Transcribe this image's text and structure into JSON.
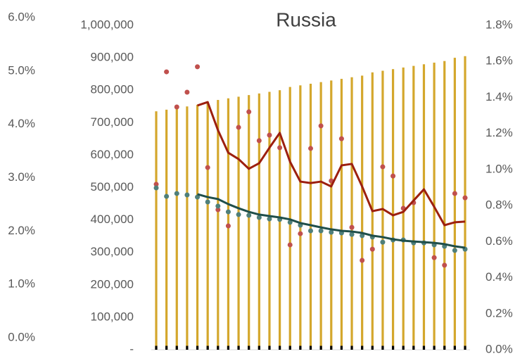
{
  "chart_data": {
    "type": "combo",
    "title": "Russia",
    "categories": [
      null,
      null,
      null,
      null,
      null,
      null,
      null,
      null,
      null,
      null,
      null,
      null,
      null,
      null,
      null,
      null,
      null,
      null,
      null,
      null,
      null,
      null,
      null,
      null,
      null,
      null,
      null,
      null,
      null,
      null,
      null
    ],
    "ylim": [
      0,
      1000000
    ],
    "yticks": [
      {
        "value": 0,
        "label": "-"
      },
      {
        "value": 100000,
        "label": "100,000"
      },
      {
        "value": 200000,
        "label": "200,000"
      },
      {
        "value": 300000,
        "label": "300,000"
      },
      {
        "value": 400000,
        "label": "400,000"
      },
      {
        "value": 500000,
        "label": "500,000"
      },
      {
        "value": 600000,
        "label": "600,000"
      },
      {
        "value": 700000,
        "label": "700,000"
      },
      {
        "value": 800000,
        "label": "800,000"
      },
      {
        "value": 900000,
        "label": "900,000"
      },
      {
        "value": 1000000,
        "label": "1,000,000"
      }
    ],
    "y2lim": [
      0,
      1.8
    ],
    "y2ticks": [
      {
        "value": 0,
        "label": "0.0%"
      },
      {
        "value": 0.2,
        "label": "0.2%"
      },
      {
        "value": 0.4,
        "label": "0.4%"
      },
      {
        "value": 0.6,
        "label": "0.6%"
      },
      {
        "value": 0.8,
        "label": "0.8%"
      },
      {
        "value": 1.0,
        "label": "1.0%"
      },
      {
        "value": 1.2,
        "label": "1.2%"
      },
      {
        "value": 1.4,
        "label": "1.4%"
      },
      {
        "value": 1.6,
        "label": "1.6%"
      },
      {
        "value": 1.8,
        "label": "1.8%"
      }
    ],
    "y3lim": [
      0,
      6
    ],
    "y3ticks": [
      {
        "value": 0,
        "label": "0.0%"
      },
      {
        "value": 1,
        "label": "1.0%"
      },
      {
        "value": 2,
        "label": "2.0%"
      },
      {
        "value": 3,
        "label": "3.0%"
      },
      {
        "value": 4,
        "label": "4.0%"
      },
      {
        "value": 5,
        "label": "5.0%"
      },
      {
        "value": 6,
        "label": "6.0%"
      }
    ],
    "series": [
      {
        "kind": "bar",
        "color": "#d4a72c",
        "values": [
          735000,
          740000,
          745000,
          750000,
          755000,
          765000,
          770000,
          775000,
          780000,
          785000,
          790000,
          795000,
          800000,
          810000,
          815000,
          820000,
          825000,
          830000,
          835000,
          840000,
          845000,
          855000,
          860000,
          865000,
          870000,
          875000,
          880000,
          885000,
          890000,
          900000,
          905000
        ]
      },
      {
        "kind": "bar",
        "color": "#000000",
        "values": [
          12000,
          12000,
          12000,
          12000,
          12000,
          12000,
          12000,
          12000,
          12000,
          12000,
          12000,
          12000,
          12000,
          12000,
          12000,
          12000,
          12000,
          12000,
          12000,
          12000,
          12000,
          12000,
          12000,
          12000,
          12000,
          12000,
          12000,
          12000,
          12000,
          12000,
          12000
        ]
      },
      {
        "kind": "scatter",
        "axis": "y2",
        "color": "#c0504d",
        "values": [
          0.918,
          1.542,
          1.347,
          1.429,
          1.57,
          1.011,
          0.777,
          0.687,
          1.234,
          1.32,
          1.16,
          1.191,
          1.121,
          0.582,
          0.644,
          1.117,
          1.242,
          0.937,
          1.171,
          0.679,
          0.496,
          0.558,
          1.015,
          0.964,
          0.785,
          0.816,
          null,
          0.511,
          0.469,
          0.867,
          0.843
        ]
      },
      {
        "kind": "scatter",
        "axis": "y2",
        "color": "#4f7f7a",
        "values": [
          0.898,
          0.851,
          0.867,
          0.859,
          0.847,
          0.82,
          0.797,
          0.765,
          0.75,
          0.746,
          0.734,
          0.726,
          0.723,
          0.707,
          0.691,
          0.66,
          0.66,
          0.652,
          0.648,
          0.64,
          0.633,
          0.625,
          0.597,
          0.609,
          0.609,
          0.593,
          0.593,
          0.582,
          0.574,
          0.551,
          0.558
        ]
      },
      {
        "kind": "line",
        "axis": "y2",
        "color": "#9c1f0f",
        "values": [
          null,
          null,
          null,
          null,
          1.355,
          1.374,
          1.218,
          1.093,
          1.058,
          1.004,
          1.035,
          1.121,
          1.203,
          1.043,
          0.933,
          0.925,
          0.933,
          0.906,
          1.023,
          1.031,
          0.906,
          0.769,
          0.781,
          0.746,
          0.765,
          0.828,
          0.89,
          0.793,
          0.691,
          0.707,
          0.711
        ]
      },
      {
        "kind": "line",
        "axis": "y2",
        "color": "#1f4e4a",
        "values": [
          null,
          null,
          null,
          null,
          0.863,
          0.847,
          0.836,
          0.808,
          0.785,
          0.765,
          0.75,
          0.742,
          0.734,
          0.723,
          0.703,
          0.691,
          0.679,
          0.668,
          0.66,
          0.656,
          0.648,
          0.633,
          0.625,
          0.613,
          0.605,
          0.601,
          0.597,
          0.593,
          0.586,
          0.574,
          0.566
        ]
      }
    ]
  }
}
